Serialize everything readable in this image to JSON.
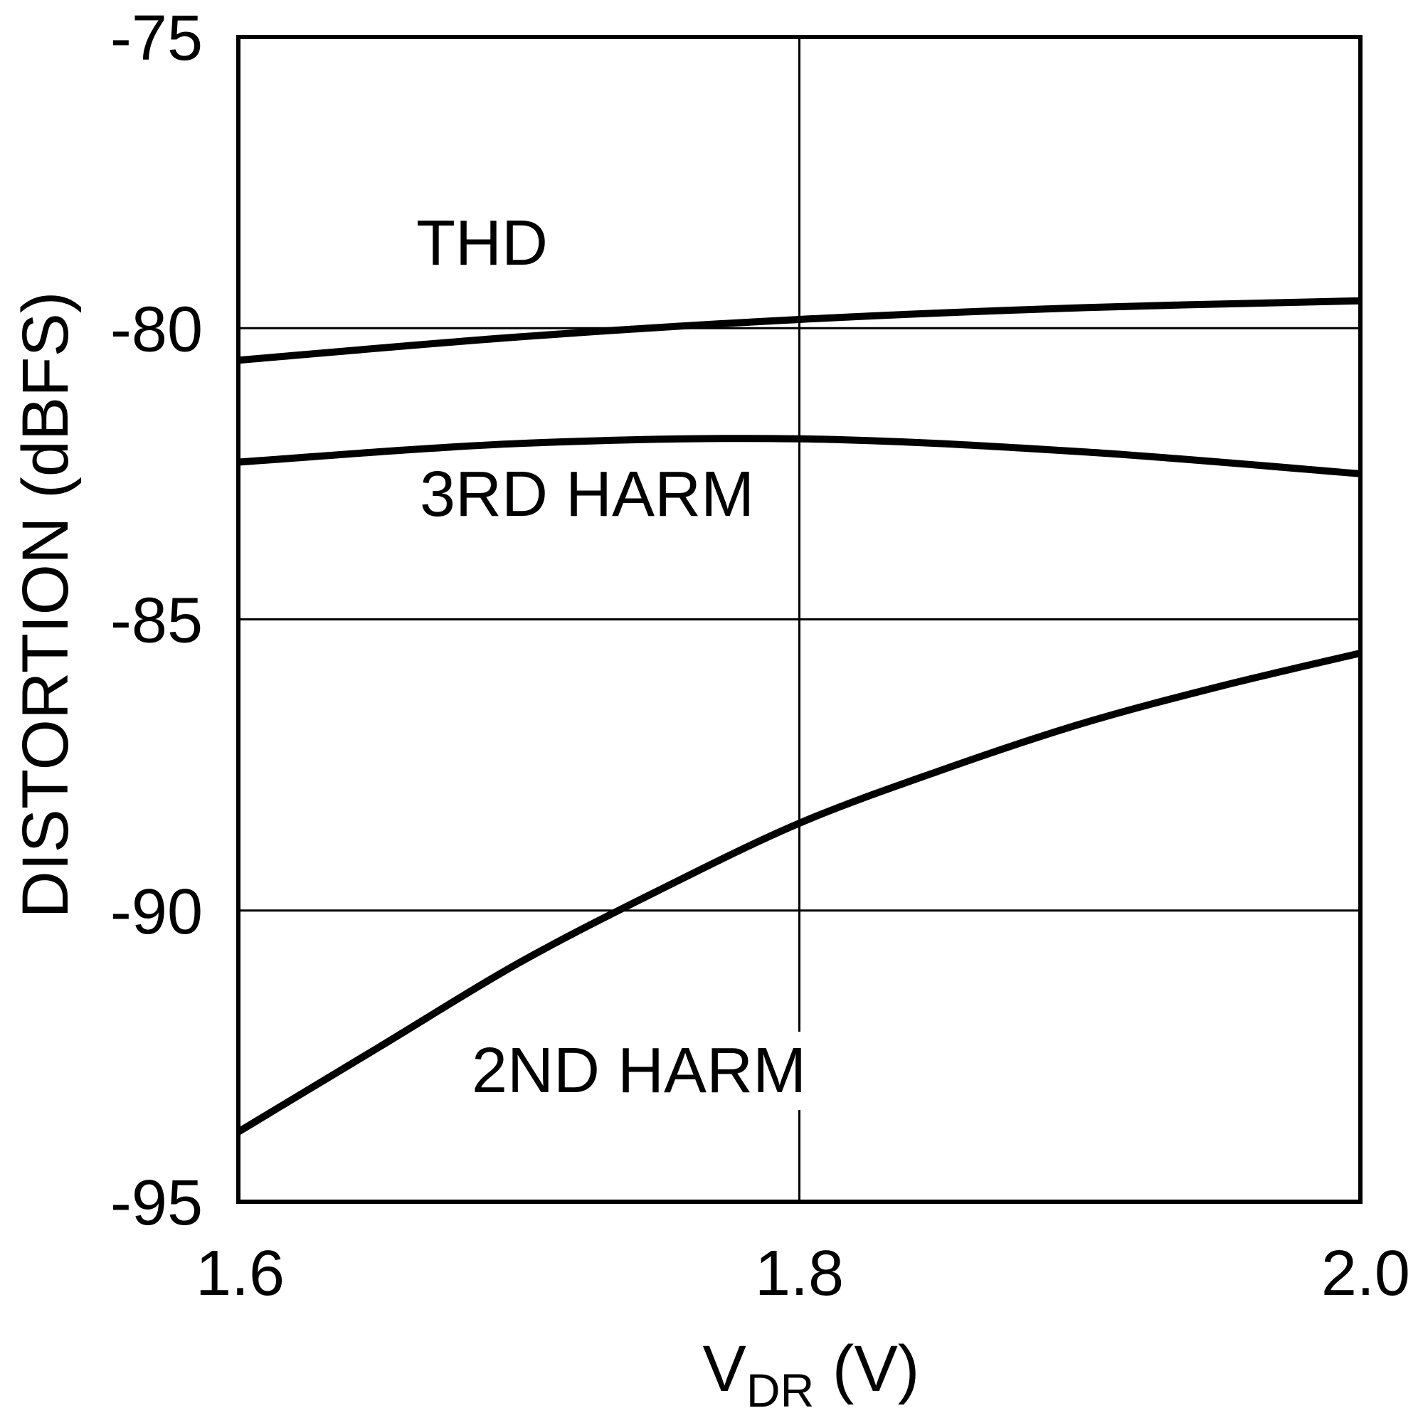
{
  "chart_data": {
    "type": "line",
    "title": "",
    "xlabel_main": "V",
    "xlabel_sub": "DR",
    "xlabel_unit": " (V)",
    "ylabel": "DISTORTION (dBFS)",
    "xlim": [
      1.6,
      2.0
    ],
    "ylim": [
      -95,
      -75
    ],
    "xticks": [
      1.6,
      1.8,
      2.0
    ],
    "xtick_labels": [
      "1.6",
      "1.8",
      "2.0"
    ],
    "yticks": [
      -75,
      -80,
      -85,
      -90,
      -95
    ],
    "ytick_labels": [
      "-75",
      "-80",
      "-85",
      "-90",
      "-95"
    ],
    "grid": true,
    "series": [
      {
        "name": "THD",
        "x": [
          1.6,
          1.7,
          1.8,
          1.9,
          2.0
        ],
        "y": [
          -80.55,
          -80.15,
          -79.85,
          -79.65,
          -79.53
        ]
      },
      {
        "name": "3RD HARM",
        "x": [
          1.6,
          1.7,
          1.8,
          1.9,
          2.0
        ],
        "y": [
          -82.3,
          -81.98,
          -81.9,
          -82.12,
          -82.5
        ]
      },
      {
        "name": "2ND HARM",
        "x": [
          1.6,
          1.65,
          1.7,
          1.75,
          1.8,
          1.85,
          1.9,
          1.95,
          2.0
        ],
        "y": [
          -93.8,
          -92.35,
          -90.9,
          -89.65,
          -88.5,
          -87.6,
          -86.8,
          -86.15,
          -85.58
        ]
      }
    ]
  }
}
